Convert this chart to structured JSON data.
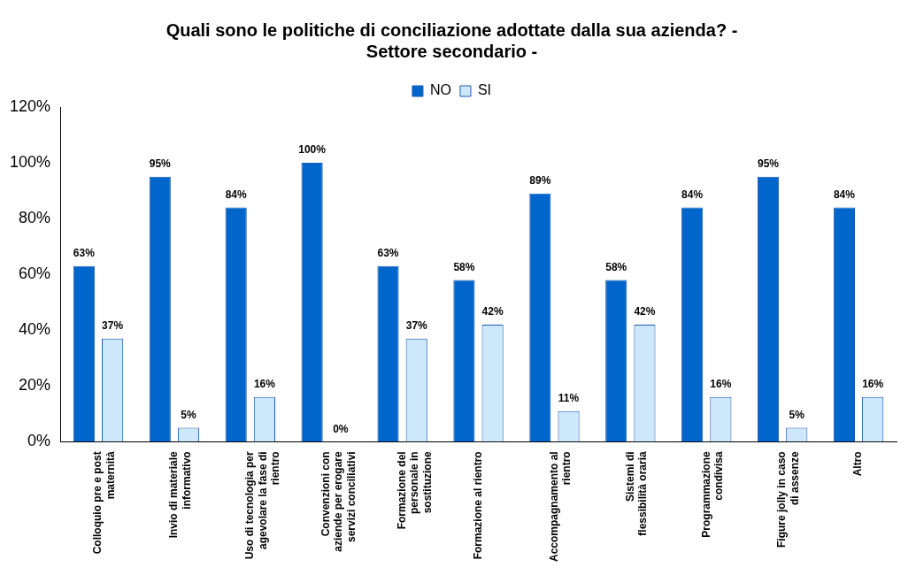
{
  "chart_data": {
    "type": "bar",
    "title": "Quali sono le politiche di conciliazione adottate dalla sua azienda? -\nSettore secondario -",
    "categories": [
      "Colloquio pre e post maternità",
      "Invio di materiale informativo",
      "Uso di tecnologia per agevolare la fase di rientro",
      "Convenzioni con aziende per erogare servizi conciliativi",
      "Formazione del personale in sostituzione",
      "Formazione al rientro",
      "Accompagnamento al rientro",
      "Sistemi di flessibilità oraria",
      "Programmazione condivisa",
      "Figure jolly in caso di assenze",
      "Altro"
    ],
    "series": [
      {
        "name": "NO",
        "color": "#0066cc",
        "values": [
          63,
          95,
          84,
          100,
          63,
          58,
          89,
          58,
          84,
          95,
          84
        ],
        "value_labels": [
          "63%",
          "95%",
          "84%",
          "100%",
          "63%",
          "58%",
          "89%",
          "58%",
          "84%",
          "95%",
          "84%"
        ]
      },
      {
        "name": "SI",
        "color": "#cce8fa",
        "values": [
          37,
          5,
          16,
          0,
          37,
          42,
          11,
          42,
          16,
          5,
          16
        ],
        "value_labels": [
          "37%",
          "5%",
          "16%",
          "0%",
          "37%",
          "42%",
          "11%",
          "42%",
          "16%",
          "5%",
          "16%"
        ]
      }
    ],
    "ylim": [
      0,
      120
    ],
    "yticks": [
      {
        "value": 0,
        "label": "0%"
      },
      {
        "value": 20,
        "label": "20%"
      },
      {
        "value": 40,
        "label": "40%"
      },
      {
        "value": 60,
        "label": "60%"
      },
      {
        "value": 80,
        "label": "80%"
      },
      {
        "value": 100,
        "label": "100%"
      },
      {
        "value": 120,
        "label": "120%"
      }
    ],
    "grid": false,
    "legend": "top"
  }
}
